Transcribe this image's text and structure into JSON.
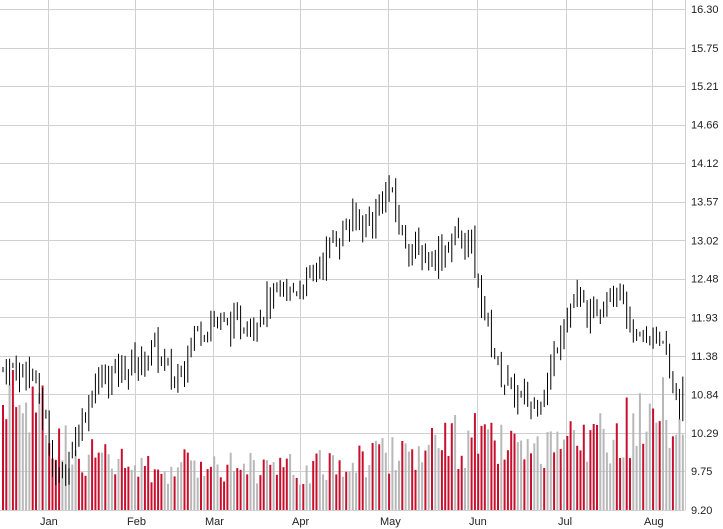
{
  "chart_data": {
    "type": "candlestick",
    "x_ticks": [
      "Jan",
      "Feb",
      "Mar",
      "Apr",
      "May",
      "Jun",
      "Jul",
      "Aug"
    ],
    "y_ticks": [
      9.2,
      9.75,
      10.29,
      10.84,
      11.38,
      11.93,
      12.48,
      13.02,
      13.57,
      14.12,
      14.66,
      15.21,
      15.75,
      16.3
    ],
    "y_tick_labels": [
      "9.20",
      "9.75",
      "10.29",
      "10.84",
      "11.38",
      "11.93",
      "12.48",
      "13.02",
      "13.57",
      "14.12",
      "14.66",
      "15.21",
      "15.75",
      "16.30"
    ],
    "ylim": [
      9.2,
      16.3
    ],
    "grid": true,
    "price_key_points": [
      {
        "date": "Dec 26",
        "price": 11.2
      },
      {
        "date": "Jan 01",
        "price": 10.3
      },
      {
        "date": "Jan 04",
        "price": 9.6
      },
      {
        "date": "Jan 07",
        "price": 9.8
      },
      {
        "date": "Jan 12",
        "price": 10.4
      },
      {
        "date": "Jan 15",
        "price": 10.7
      },
      {
        "date": "Jan 18",
        "price": 11.0
      },
      {
        "date": "Jan 26",
        "price": 11.2
      },
      {
        "date": "Feb 03",
        "price": 11.3
      },
      {
        "date": "Feb 08",
        "price": 11.5
      },
      {
        "date": "Feb 15",
        "price": 11.0
      },
      {
        "date": "Feb 22",
        "price": 11.7
      },
      {
        "date": "Mar 01",
        "price": 11.9
      },
      {
        "date": "Mar 08",
        "price": 11.8
      },
      {
        "date": "Mar 15",
        "price": 11.9
      },
      {
        "date": "Mar 22",
        "price": 12.2
      },
      {
        "date": "Mar 29",
        "price": 12.3
      },
      {
        "date": "Apr 05",
        "price": 12.5
      },
      {
        "date": "Apr 12",
        "price": 13.0
      },
      {
        "date": "Apr 19",
        "price": 13.3
      },
      {
        "date": "Apr 26",
        "price": 13.3
      },
      {
        "date": "May 01",
        "price": 13.8
      },
      {
        "date": "May 06",
        "price": 13.1
      },
      {
        "date": "May 12",
        "price": 12.8
      },
      {
        "date": "May 18",
        "price": 12.8
      },
      {
        "date": "May 25",
        "price": 13.1
      },
      {
        "date": "May 30",
        "price": 12.9
      },
      {
        "date": "Jun 03",
        "price": 12.1
      },
      {
        "date": "Jun 08",
        "price": 11.2
      },
      {
        "date": "Jun 14",
        "price": 10.8
      },
      {
        "date": "Jun 20",
        "price": 10.7
      },
      {
        "date": "Jun 25",
        "price": 11.0
      },
      {
        "date": "Jun 29",
        "price": 11.8
      },
      {
        "date": "Jul 05",
        "price": 12.2
      },
      {
        "date": "Jul 10",
        "price": 11.9
      },
      {
        "date": "Jul 15",
        "price": 12.3
      },
      {
        "date": "Jul 20",
        "price": 12.4
      },
      {
        "date": "Jul 25",
        "price": 11.6
      },
      {
        "date": "Jul 30",
        "price": 11.6
      },
      {
        "date": "Aug 03",
        "price": 11.8
      },
      {
        "date": "Aug 07",
        "price": 11.1
      },
      {
        "date": "Aug 11",
        "price": 10.7
      },
      {
        "date": "Aug 14",
        "price": 11.3
      },
      {
        "date": "Aug 16",
        "price": 11.9
      }
    ],
    "volume_fraction_key_points": [
      {
        "date": "Dec 26",
        "fraction": 0.85
      },
      {
        "date": "Jan 04",
        "fraction": 0.55
      },
      {
        "date": "Jan 15",
        "fraction": 0.42
      },
      {
        "date": "Feb 08",
        "fraction": 0.3
      },
      {
        "date": "Mar 01",
        "fraction": 0.38
      },
      {
        "date": "Apr 01",
        "fraction": 0.3
      },
      {
        "date": "May 01",
        "fraction": 0.45
      },
      {
        "date": "Jun 01",
        "fraction": 0.55
      },
      {
        "date": "Jun 20",
        "fraction": 0.4
      },
      {
        "date": "Jul 10",
        "fraction": 0.55
      },
      {
        "date": "Aug 07",
        "fraction": 0.75
      },
      {
        "date": "Aug 16",
        "fraction": 0.5
      }
    ],
    "colors": {
      "grid": "#d0d0d0",
      "price_bar": "#000000",
      "volume_up": "#c8102e",
      "volume_down": "#b8b8b8",
      "axis_text": "#222222",
      "background": "#ffffff"
    }
  }
}
